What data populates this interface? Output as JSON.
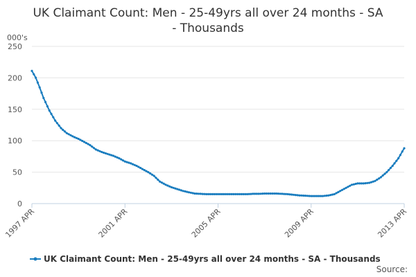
{
  "chart_data": {
    "type": "line",
    "title": "UK Claimant Count: Men - 25-49yrs all over 24 months - SA - Thousands",
    "title_lines": [
      "UK Claimant Count: Men - 25-49yrs all over 24 months - SA",
      "- Thousands"
    ],
    "ylabel": "000's",
    "xlabel": "",
    "ylim": [
      0,
      250
    ],
    "yticks": [
      0,
      50,
      100,
      150,
      200,
      250
    ],
    "xlim": [
      1997.25,
      2013.25
    ],
    "xticks": [
      {
        "value": 1997.25,
        "label": "1997 APR"
      },
      {
        "value": 2001.25,
        "label": "2001 APR"
      },
      {
        "value": 2005.25,
        "label": "2005 APR"
      },
      {
        "value": 2009.25,
        "label": "2009 APR"
      },
      {
        "value": 2013.25,
        "label": "2013 APR"
      }
    ],
    "grid": true,
    "legend_position": "bottom",
    "series": [
      {
        "name": "UK Claimant Count: Men - 25-49yrs all over 24 months - SA - Thousands",
        "color": "#1a7dbf",
        "anchors": [
          [
            1997.25,
            211
          ],
          [
            1997.42,
            200
          ],
          [
            1997.58,
            185
          ],
          [
            1997.75,
            168
          ],
          [
            1998.0,
            148
          ],
          [
            1998.25,
            132
          ],
          [
            1998.5,
            120
          ],
          [
            1998.75,
            112
          ],
          [
            1999.0,
            107
          ],
          [
            1999.25,
            103
          ],
          [
            1999.5,
            98
          ],
          [
            1999.75,
            93
          ],
          [
            2000.0,
            86
          ],
          [
            2000.25,
            82
          ],
          [
            2000.5,
            79
          ],
          [
            2000.75,
            76
          ],
          [
            2001.0,
            72
          ],
          [
            2001.25,
            67
          ],
          [
            2001.5,
            64
          ],
          [
            2001.75,
            60
          ],
          [
            2002.0,
            55
          ],
          [
            2002.25,
            50
          ],
          [
            2002.5,
            44
          ],
          [
            2002.75,
            35
          ],
          [
            2003.0,
            30
          ],
          [
            2003.25,
            26
          ],
          [
            2003.5,
            23
          ],
          [
            2003.75,
            20
          ],
          [
            2004.0,
            18
          ],
          [
            2004.25,
            16
          ],
          [
            2004.5,
            15.5
          ],
          [
            2004.75,
            15
          ],
          [
            2005.0,
            15
          ],
          [
            2005.25,
            15
          ],
          [
            2005.5,
            15
          ],
          [
            2005.75,
            15
          ],
          [
            2006.0,
            15
          ],
          [
            2006.25,
            15
          ],
          [
            2006.5,
            15
          ],
          [
            2006.75,
            15.5
          ],
          [
            2007.0,
            15.5
          ],
          [
            2007.25,
            16
          ],
          [
            2007.5,
            16
          ],
          [
            2007.75,
            16
          ],
          [
            2008.0,
            15.5
          ],
          [
            2008.25,
            15
          ],
          [
            2008.5,
            14
          ],
          [
            2008.75,
            13
          ],
          [
            2009.0,
            12.5
          ],
          [
            2009.25,
            12
          ],
          [
            2009.5,
            12
          ],
          [
            2009.75,
            12
          ],
          [
            2010.0,
            13
          ],
          [
            2010.25,
            15
          ],
          [
            2010.5,
            20
          ],
          [
            2010.75,
            25
          ],
          [
            2011.0,
            30
          ],
          [
            2011.25,
            32
          ],
          [
            2011.5,
            32
          ],
          [
            2011.75,
            33
          ],
          [
            2012.0,
            36
          ],
          [
            2012.25,
            42
          ],
          [
            2012.5,
            50
          ],
          [
            2012.75,
            60
          ],
          [
            2013.0,
            72
          ],
          [
            2013.25,
            88
          ]
        ]
      }
    ]
  },
  "source_label": "Source:"
}
